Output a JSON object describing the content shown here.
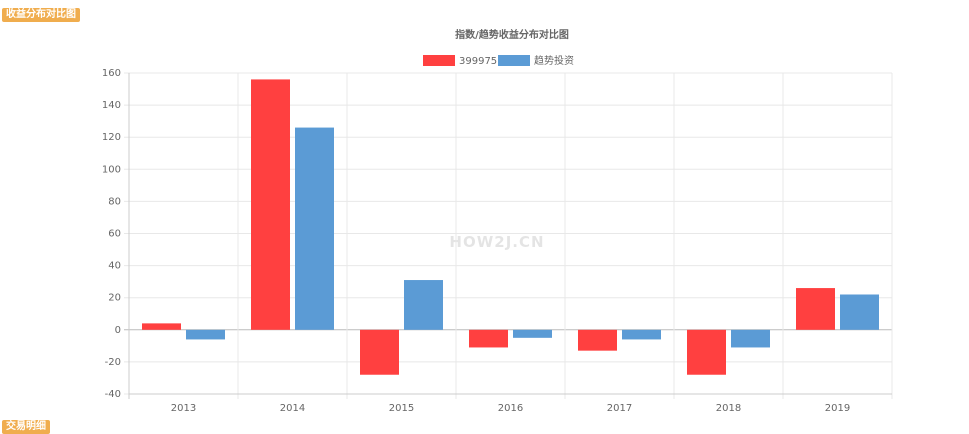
{
  "sections": {
    "top_label": "收益分布对比图",
    "bottom_label": "交易明细"
  },
  "watermark": "HOW2J.CN",
  "colors": {
    "series_1": "#ff4040",
    "series_2": "#5b9bd5",
    "tag_bg": "#f0ad4e"
  },
  "chart_data": {
    "type": "bar",
    "title": "指数/趋势收益分布对比图",
    "categories": [
      "2013",
      "2014",
      "2015",
      "2016",
      "2017",
      "2018",
      "2019"
    ],
    "series": [
      {
        "name": "399975",
        "values": [
          4,
          156,
          -28,
          -11,
          -13,
          -28,
          26
        ]
      },
      {
        "name": "趋势投资",
        "values": [
          -6,
          126,
          31,
          -5,
          -6,
          -11,
          22
        ]
      }
    ],
    "ylim": [
      -40,
      160
    ],
    "yticks": [
      -40,
      -20,
      0,
      20,
      40,
      60,
      80,
      100,
      120,
      140,
      160
    ],
    "legend_position": "top",
    "grid": true
  }
}
